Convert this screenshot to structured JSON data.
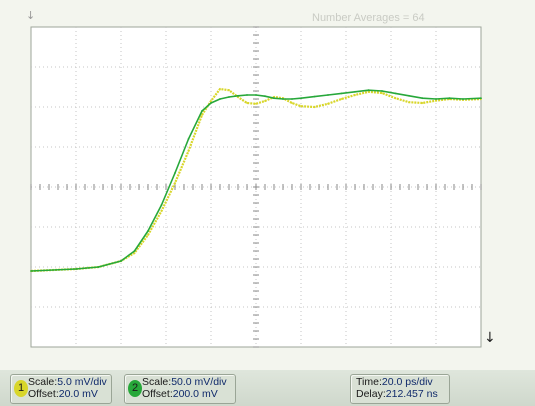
{
  "header": {
    "averages_text": "Number Averages = 64"
  },
  "markers": {
    "top_arrow": "↓",
    "bottom_arrow": "↓"
  },
  "channels": [
    {
      "number": "1",
      "color": "#d8d62a",
      "scale_label": "Scale:",
      "scale_value": "5.0 mV/div",
      "offset_label": "Offset:",
      "offset_value": "20.0 mV"
    },
    {
      "number": "2",
      "color": "#27a83a",
      "scale_label": "Scale:",
      "scale_value": "50.0 mV/div",
      "offset_label": "Offset:",
      "offset_value": "200.0 mV"
    }
  ],
  "timebase": {
    "time_label": "Time:",
    "time_value": "20.0 ps/div",
    "delay_label": "Delay:",
    "delay_value": "212.457 ns"
  },
  "chart_data": {
    "type": "line",
    "grid": true,
    "x_divisions": 10,
    "y_divisions": 8,
    "xlim": [
      0,
      10
    ],
    "ylim": [
      -4,
      4
    ],
    "series": [
      {
        "name": "1",
        "color": "#d8d62a",
        "x": [
          0,
          1,
          1.5,
          2,
          2.3,
          2.6,
          2.9,
          3.2,
          3.5,
          3.8,
          4.0,
          4.2,
          4.4,
          4.6,
          4.8,
          5.0,
          5.2,
          5.4,
          5.6,
          5.8,
          6.0,
          6.3,
          6.6,
          6.9,
          7.2,
          7.5,
          7.8,
          8.1,
          8.4,
          8.7,
          9.0,
          9.3,
          9.6,
          10
        ],
        "y": [
          -2.1,
          -2.05,
          -2.0,
          -1.85,
          -1.65,
          -1.2,
          -0.6,
          0.1,
          0.9,
          1.8,
          2.15,
          2.45,
          2.42,
          2.25,
          2.1,
          2.08,
          2.15,
          2.25,
          2.22,
          2.1,
          2.02,
          2.0,
          2.08,
          2.2,
          2.3,
          2.38,
          2.35,
          2.22,
          2.12,
          2.1,
          2.16,
          2.2,
          2.18,
          2.2
        ]
      },
      {
        "name": "2",
        "color": "#27a83a",
        "x": [
          0,
          1,
          1.5,
          2,
          2.3,
          2.6,
          2.9,
          3.2,
          3.5,
          3.8,
          4.0,
          4.2,
          4.4,
          4.6,
          4.8,
          5.0,
          5.2,
          5.4,
          5.6,
          5.8,
          6.0,
          6.3,
          6.6,
          6.9,
          7.2,
          7.5,
          7.8,
          8.1,
          8.4,
          8.7,
          9.0,
          9.3,
          9.6,
          10
        ],
        "y": [
          -2.1,
          -2.05,
          -2.0,
          -1.85,
          -1.6,
          -1.1,
          -0.45,
          0.35,
          1.2,
          1.9,
          2.1,
          2.2,
          2.25,
          2.28,
          2.3,
          2.3,
          2.27,
          2.22,
          2.2,
          2.2,
          2.22,
          2.26,
          2.3,
          2.34,
          2.38,
          2.42,
          2.4,
          2.34,
          2.28,
          2.22,
          2.2,
          2.22,
          2.2,
          2.22
        ]
      }
    ]
  }
}
